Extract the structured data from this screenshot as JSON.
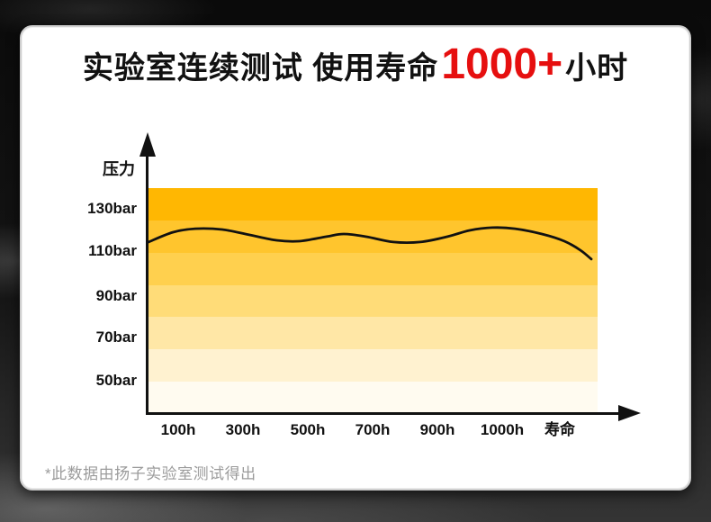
{
  "title": {
    "prefix": "实验室连续测试 使用寿命",
    "highlight": "1000+",
    "suffix": "小时",
    "highlight_color": "#e60f0f",
    "text_color": "#111111"
  },
  "footnote": "*此数据由扬子实验室测试得出",
  "chart_data": {
    "type": "line",
    "title": "实验室连续测试 使用寿命1000+小时",
    "xlabel": "寿命",
    "ylabel": "压力",
    "x_ticks": [
      "100h",
      "300h",
      "500h",
      "700h",
      "900h",
      "1000h",
      "寿命"
    ],
    "y_ticks": [
      "130bar",
      "110bar",
      "90bar",
      "70bar",
      "50bar"
    ],
    "grid": false,
    "legend": "none",
    "y_range_bar": [
      50,
      140
    ],
    "band_count": 7,
    "band_colors_top_to_bottom": [
      "#ffb702",
      "#ffc52d",
      "#ffd04e",
      "#ffdc78",
      "#ffe7a6",
      "#fff2d0",
      "#fffbf0"
    ],
    "curve_color": "#111111",
    "series": [
      {
        "name": "压力 (bar)",
        "values_at_ticks_bar": {
          "100h": 120,
          "300h": 118,
          "500h": 116,
          "700h": 116,
          "900h": 117,
          "1000h": 121
        },
        "end_drop_bar": 106,
        "curve_render_points": [
          [
            0.0,
            114.3
          ],
          [
            0.054,
            118.9
          ],
          [
            0.104,
            120.6
          ],
          [
            0.164,
            120.2
          ],
          [
            0.224,
            117.7
          ],
          [
            0.285,
            115.1
          ],
          [
            0.335,
            114.7
          ],
          [
            0.395,
            116.8
          ],
          [
            0.435,
            118.1
          ],
          [
            0.485,
            116.8
          ],
          [
            0.545,
            114.3
          ],
          [
            0.605,
            114.3
          ],
          [
            0.665,
            116.8
          ],
          [
            0.715,
            119.8
          ],
          [
            0.766,
            121.1
          ],
          [
            0.816,
            120.6
          ],
          [
            0.876,
            118.1
          ],
          [
            0.926,
            114.7
          ],
          [
            0.962,
            110.4
          ],
          [
            0.986,
            106.2
          ]
        ]
      }
    ]
  }
}
